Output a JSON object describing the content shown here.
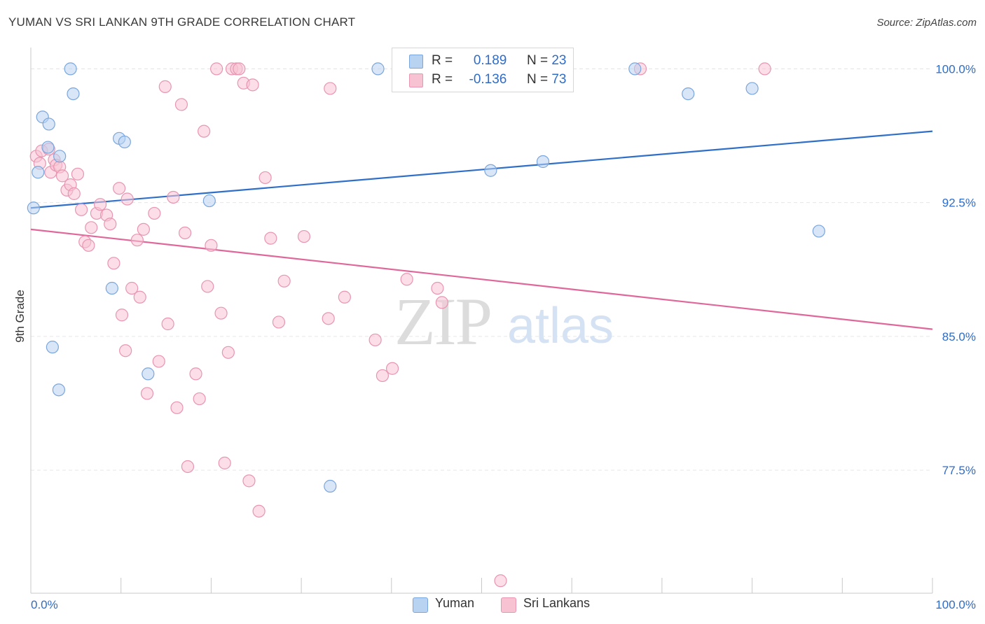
{
  "header": {
    "title": "YUMAN VS SRI LANKAN 9TH GRADE CORRELATION CHART",
    "source": "Source: ZipAtlas.com"
  },
  "legend": {
    "rows": [
      {
        "r_label": "R = ",
        "r_value": "0.189",
        "n_label": "N = ",
        "n_value": "23"
      },
      {
        "r_label": "R = ",
        "r_value": "-0.136",
        "n_label": "N = ",
        "n_value": "73"
      }
    ]
  },
  "bottom_legend": [
    "Yuman",
    "Sri Lankans"
  ],
  "colors": {
    "yuman_fill": "#b8d2f2",
    "yuman_stroke": "#7aa6dc",
    "yuman_line": "#2f6fc8",
    "srilankan_fill": "#f7c3d3",
    "srilankan_stroke": "#e895b1",
    "srilankan_line": "#e0679a",
    "axis_label": "#2f6cc7"
  },
  "chart_data": {
    "type": "scatter",
    "title": "YUMAN VS SRI LANKAN 9TH GRADE CORRELATION CHART",
    "xlabel": "",
    "ylabel": "9th Grade",
    "xlim": [
      0,
      100
    ],
    "ylim": [
      70.6,
      100.8
    ],
    "x_tick_labels": [
      "0.0%",
      "100.0%"
    ],
    "y_ticks": [
      77.5,
      85.0,
      92.5,
      100.0
    ],
    "y_tick_labels": [
      "77.5%",
      "85.0%",
      "92.5%",
      "100.0%"
    ],
    "grid": true,
    "legend_position": "top-center",
    "watermark": {
      "zip": "ZIP",
      "atlas": "atlas"
    },
    "series": [
      {
        "name": "Yuman",
        "r": 0.189,
        "n": 23,
        "trend": {
          "x": [
            0,
            100
          ],
          "y": [
            92.2,
            96.5
          ]
        },
        "points": [
          {
            "x": 0.3,
            "y": 92.2
          },
          {
            "x": 0.8,
            "y": 94.2
          },
          {
            "x": 1.3,
            "y": 97.3
          },
          {
            "x": 1.9,
            "y": 95.6
          },
          {
            "x": 2.0,
            "y": 96.9
          },
          {
            "x": 3.2,
            "y": 95.1
          },
          {
            "x": 4.4,
            "y": 100.0
          },
          {
            "x": 4.7,
            "y": 98.6
          },
          {
            "x": 2.4,
            "y": 84.4
          },
          {
            "x": 3.1,
            "y": 82.0
          },
          {
            "x": 9.8,
            "y": 96.1
          },
          {
            "x": 10.4,
            "y": 95.9
          },
          {
            "x": 9.0,
            "y": 87.7
          },
          {
            "x": 13.0,
            "y": 82.9
          },
          {
            "x": 19.8,
            "y": 92.6
          },
          {
            "x": 33.2,
            "y": 76.6
          },
          {
            "x": 38.5,
            "y": 100.0
          },
          {
            "x": 51.0,
            "y": 94.3
          },
          {
            "x": 56.8,
            "y": 94.8
          },
          {
            "x": 67.0,
            "y": 100.0
          },
          {
            "x": 72.9,
            "y": 98.6
          },
          {
            "x": 80.0,
            "y": 98.9
          },
          {
            "x": 87.4,
            "y": 90.9
          }
        ]
      },
      {
        "name": "Sri Lankans",
        "r": -0.136,
        "n": 73,
        "trend": {
          "x": [
            0,
            100
          ],
          "y": [
            91.0,
            85.4
          ]
        },
        "points": [
          {
            "x": 0.6,
            "y": 95.1
          },
          {
            "x": 1.0,
            "y": 94.7
          },
          {
            "x": 1.2,
            "y": 95.4
          },
          {
            "x": 2.0,
            "y": 95.5
          },
          {
            "x": 2.2,
            "y": 94.2
          },
          {
            "x": 2.6,
            "y": 94.9
          },
          {
            "x": 2.8,
            "y": 94.6
          },
          {
            "x": 3.2,
            "y": 94.5
          },
          {
            "x": 3.5,
            "y": 94.0
          },
          {
            "x": 4.0,
            "y": 93.2
          },
          {
            "x": 4.4,
            "y": 93.5
          },
          {
            "x": 4.8,
            "y": 93.0
          },
          {
            "x": 5.2,
            "y": 94.1
          },
          {
            "x": 5.6,
            "y": 92.1
          },
          {
            "x": 6.0,
            "y": 90.3
          },
          {
            "x": 6.4,
            "y": 90.1
          },
          {
            "x": 6.7,
            "y": 91.1
          },
          {
            "x": 7.3,
            "y": 91.9
          },
          {
            "x": 7.7,
            "y": 92.4
          },
          {
            "x": 8.4,
            "y": 91.8
          },
          {
            "x": 8.8,
            "y": 91.3
          },
          {
            "x": 9.2,
            "y": 89.1
          },
          {
            "x": 9.8,
            "y": 93.3
          },
          {
            "x": 10.1,
            "y": 86.2
          },
          {
            "x": 10.7,
            "y": 92.7
          },
          {
            "x": 10.5,
            "y": 84.2
          },
          {
            "x": 11.2,
            "y": 87.7
          },
          {
            "x": 11.8,
            "y": 90.4
          },
          {
            "x": 12.1,
            "y": 87.2
          },
          {
            "x": 12.5,
            "y": 91.0
          },
          {
            "x": 12.9,
            "y": 81.8
          },
          {
            "x": 13.7,
            "y": 91.9
          },
          {
            "x": 14.2,
            "y": 83.6
          },
          {
            "x": 14.9,
            "y": 99.0
          },
          {
            "x": 15.2,
            "y": 85.7
          },
          {
            "x": 15.8,
            "y": 92.8
          },
          {
            "x": 16.2,
            "y": 81.0
          },
          {
            "x": 16.7,
            "y": 98.0
          },
          {
            "x": 17.1,
            "y": 90.8
          },
          {
            "x": 17.4,
            "y": 77.7
          },
          {
            "x": 18.3,
            "y": 82.9
          },
          {
            "x": 18.7,
            "y": 81.5
          },
          {
            "x": 19.2,
            "y": 96.5
          },
          {
            "x": 19.6,
            "y": 87.8
          },
          {
            "x": 20.0,
            "y": 90.1
          },
          {
            "x": 20.6,
            "y": 100.0
          },
          {
            "x": 21.1,
            "y": 86.3
          },
          {
            "x": 21.5,
            "y": 77.9
          },
          {
            "x": 21.9,
            "y": 84.1
          },
          {
            "x": 22.3,
            "y": 100.0
          },
          {
            "x": 22.8,
            "y": 100.0
          },
          {
            "x": 23.1,
            "y": 100.0
          },
          {
            "x": 23.6,
            "y": 99.2
          },
          {
            "x": 24.2,
            "y": 76.9
          },
          {
            "x": 24.6,
            "y": 99.1
          },
          {
            "x": 25.3,
            "y": 75.2
          },
          {
            "x": 26.0,
            "y": 93.9
          },
          {
            "x": 26.6,
            "y": 90.5
          },
          {
            "x": 27.5,
            "y": 85.8
          },
          {
            "x": 28.1,
            "y": 88.1
          },
          {
            "x": 30.3,
            "y": 90.6
          },
          {
            "x": 33.0,
            "y": 86.0
          },
          {
            "x": 33.2,
            "y": 98.9
          },
          {
            "x": 34.8,
            "y": 87.2
          },
          {
            "x": 38.2,
            "y": 84.8
          },
          {
            "x": 39.0,
            "y": 82.8
          },
          {
            "x": 40.1,
            "y": 83.2
          },
          {
            "x": 41.7,
            "y": 88.2
          },
          {
            "x": 45.1,
            "y": 87.7
          },
          {
            "x": 45.6,
            "y": 86.9
          },
          {
            "x": 52.1,
            "y": 71.3
          },
          {
            "x": 67.6,
            "y": 100.0
          },
          {
            "x": 81.4,
            "y": 100.0
          }
        ]
      }
    ]
  }
}
